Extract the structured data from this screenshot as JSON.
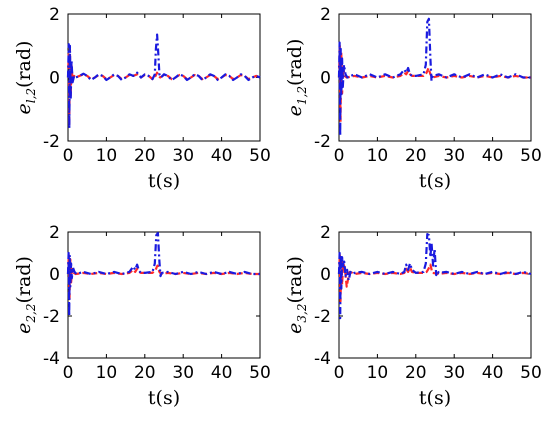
{
  "colors": {
    "series_a": "#ff2a2a",
    "series_b": "#1a1adf",
    "axis": "#000000",
    "background": "#ffffff"
  },
  "chart_data": [
    {
      "type": "line",
      "ylabel": {
        "symbol": "e",
        "subscript": "l,2",
        "unit": "(rad)"
      },
      "xlabel": "t(s)",
      "xlim": [
        0,
        50
      ],
      "ylim": [
        -2,
        2
      ],
      "xticks": [
        "0",
        "10",
        "20",
        "30",
        "40",
        "50"
      ],
      "yticks": [
        "-2",
        "0",
        "2"
      ],
      "series": [
        {
          "line_style": "dashed",
          "color": "#ff2a2a",
          "x": [
            0,
            0.2,
            0.35,
            0.5,
            0.7,
            0.9,
            1.2,
            1.6,
            2,
            3,
            4,
            5,
            6,
            7,
            8,
            9,
            10,
            11,
            12,
            13,
            14,
            15,
            16,
            17,
            18,
            19,
            20,
            21,
            22,
            22.8,
            23.2,
            23.6,
            24,
            25,
            26,
            27,
            28,
            29,
            30,
            31,
            32,
            33,
            34,
            35,
            36,
            37,
            38,
            39,
            40,
            41,
            42,
            43,
            44,
            45,
            46,
            47,
            48,
            49,
            50
          ],
          "y": [
            0,
            0.8,
            -1.5,
            0.9,
            -0.6,
            0.4,
            -0.1,
            0.05,
            0,
            0.05,
            0.1,
            0.05,
            -0.05,
            0,
            0.08,
            0.05,
            -0.05,
            0,
            0.08,
            0.05,
            -0.05,
            0,
            0.08,
            0.05,
            0.1,
            0,
            0.08,
            0.05,
            -0.05,
            0.05,
            0.15,
            0.05,
            0,
            0.08,
            0.05,
            -0.05,
            0,
            0.08,
            0.05,
            -0.05,
            0,
            0.08,
            0.05,
            -0.05,
            0,
            0.08,
            0.05,
            -0.05,
            0,
            0.08,
            0.05,
            -0.05,
            0,
            0.08,
            0.05,
            -0.05,
            0,
            0.05,
            0
          ]
        },
        {
          "line_style": "dash-dot",
          "color": "#1a1adf",
          "x": [
            0,
            0.2,
            0.35,
            0.5,
            0.7,
            0.9,
            1.2,
            1.6,
            2,
            3,
            4,
            5,
            6,
            7,
            8,
            9,
            10,
            11,
            12,
            13,
            14,
            15,
            16,
            17,
            18,
            19,
            20,
            21,
            22,
            22.6,
            22.9,
            23.2,
            23.5,
            23.8,
            24.2,
            25,
            26,
            27,
            28,
            29,
            30,
            31,
            32,
            33,
            34,
            35,
            36,
            37,
            38,
            39,
            40,
            41,
            42,
            43,
            44,
            45,
            46,
            47,
            48,
            49,
            50
          ],
          "y": [
            0,
            1.05,
            -1.6,
            1.0,
            -0.7,
            0.55,
            -0.15,
            0.05,
            0,
            0.05,
            0.12,
            0.05,
            -0.08,
            0,
            0.1,
            0.05,
            -0.08,
            0,
            0.1,
            0.05,
            -0.08,
            0,
            0.1,
            0.05,
            0.15,
            0,
            0.1,
            0.05,
            -0.05,
            0.1,
            0.9,
            1.35,
            0.8,
            0.1,
            0,
            0.1,
            0.05,
            -0.08,
            0,
            0.1,
            0.05,
            -0.08,
            0,
            0.1,
            0.05,
            -0.08,
            0,
            0.1,
            0.05,
            -0.08,
            0,
            0.1,
            0.05,
            -0.08,
            0,
            0.1,
            0.05,
            -0.08,
            0,
            0.05,
            0
          ]
        }
      ]
    },
    {
      "type": "line",
      "ylabel": {
        "symbol": "e",
        "subscript": "1,2",
        "unit": "(rad)"
      },
      "xlabel": "t(s)",
      "xlim": [
        0,
        50
      ],
      "ylim": [
        -2,
        2
      ],
      "xticks": [
        "0",
        "10",
        "20",
        "30",
        "40",
        "50"
      ],
      "yticks": [
        "-2",
        "0",
        "2"
      ],
      "series": [
        {
          "line_style": "dashed",
          "color": "#ff2a2a",
          "x": [
            0,
            0.2,
            0.4,
            0.6,
            0.8,
            1.1,
            1.5,
            2,
            4,
            6,
            8,
            10,
            12,
            14,
            16,
            17,
            17.5,
            18,
            18.5,
            19,
            20,
            22,
            22.8,
            23.3,
            23.8,
            24.3,
            26,
            28,
            30,
            32,
            34,
            36,
            38,
            40,
            42,
            44,
            46,
            48,
            50
          ],
          "y": [
            0,
            1.0,
            -1.4,
            0.8,
            -0.5,
            0.3,
            0.05,
            0,
            0.05,
            0,
            0.05,
            0,
            0.05,
            0,
            0.05,
            0.15,
            0.1,
            0.2,
            0.1,
            0.05,
            0.05,
            0.05,
            0.15,
            0.3,
            0.1,
            0,
            0.05,
            0,
            0.05,
            0,
            0.05,
            0,
            0.05,
            0,
            0.05,
            0,
            0.05,
            0,
            0
          ]
        },
        {
          "line_style": "dash-dot",
          "color": "#1a1adf",
          "x": [
            0,
            0.15,
            0.3,
            0.45,
            0.6,
            0.8,
            1.0,
            1.3,
            1.7,
            2.2,
            4,
            6,
            8,
            10,
            12,
            14,
            16,
            17,
            17.5,
            18,
            18.5,
            19,
            20,
            22,
            22.6,
            23,
            23.4,
            23.8,
            24.1,
            24.4,
            26,
            28,
            30,
            32,
            34,
            36,
            38,
            40,
            42,
            44,
            46,
            48,
            50
          ],
          "y": [
            0,
            1.1,
            -1.85,
            0.9,
            -0.6,
            0.6,
            -0.3,
            0.4,
            0.1,
            0,
            0.1,
            0,
            0.1,
            0,
            0.1,
            0,
            0.1,
            0.25,
            0.15,
            0.3,
            0.1,
            0.05,
            0.05,
            0.1,
            0.4,
            1.75,
            1.85,
            0.6,
            -0.1,
            0.05,
            0.1,
            0,
            0.1,
            0,
            0.1,
            0,
            0.1,
            0,
            0.1,
            0,
            0.1,
            0,
            0
          ]
        }
      ]
    },
    {
      "type": "line",
      "ylabel": {
        "symbol": "e",
        "subscript": "2,2",
        "unit": "(rad)"
      },
      "xlabel": "t(s)",
      "xlim": [
        0,
        50
      ],
      "ylim": [
        -4,
        2
      ],
      "xticks": [
        "0",
        "10",
        "20",
        "30",
        "40",
        "50"
      ],
      "yticks": [
        "-4",
        "-2",
        "0",
        "2"
      ],
      "series": [
        {
          "line_style": "dashed",
          "color": "#ff2a2a",
          "x": [
            0,
            0.2,
            0.4,
            0.6,
            0.8,
            1.1,
            1.5,
            2,
            4,
            6,
            8,
            10,
            12,
            14,
            16,
            17,
            17.5,
            18,
            18.5,
            19,
            20,
            22,
            22.8,
            23.3,
            23.8,
            24.3,
            26,
            28,
            30,
            32,
            34,
            36,
            38,
            40,
            42,
            44,
            46,
            48,
            50
          ],
          "y": [
            0,
            0.9,
            -1.2,
            0.7,
            -0.4,
            0.25,
            0.05,
            0,
            0.05,
            0,
            0.05,
            0,
            0.05,
            0,
            0.05,
            0.2,
            0.1,
            0.25,
            0.1,
            0.05,
            0.05,
            0.05,
            0.2,
            0.4,
            0.1,
            0,
            0.05,
            0,
            0.05,
            0,
            0.05,
            0,
            0.05,
            0,
            0.05,
            0,
            0.05,
            0,
            0
          ]
        },
        {
          "line_style": "dash-dot",
          "color": "#1a1adf",
          "x": [
            0,
            0.15,
            0.3,
            0.45,
            0.6,
            0.8,
            1.0,
            1.3,
            1.7,
            2.2,
            4,
            6,
            8,
            10,
            12,
            14,
            16,
            17,
            17.5,
            18,
            18.5,
            19,
            20,
            22,
            22.6,
            23,
            23.4,
            23.8,
            24.1,
            24.4,
            26,
            28,
            30,
            32,
            34,
            36,
            38,
            40,
            42,
            44,
            46,
            48,
            50
          ],
          "y": [
            0,
            1.0,
            -2.0,
            0.9,
            -0.6,
            0.5,
            -0.2,
            0.3,
            0.1,
            0,
            0.1,
            0,
            0.1,
            0,
            0.1,
            0,
            0.1,
            0.35,
            0.2,
            0.45,
            0.15,
            0.05,
            0.05,
            0.1,
            0.5,
            1.85,
            1.95,
            0.6,
            -0.1,
            0.05,
            0.1,
            0,
            0.1,
            0,
            0.1,
            0,
            0.1,
            0,
            0.1,
            0,
            0.1,
            0,
            0
          ]
        }
      ]
    },
    {
      "type": "line",
      "ylabel": {
        "symbol": "e",
        "subscript": "3,2",
        "unit": "(rad)"
      },
      "xlabel": "t(s)",
      "xlim": [
        0,
        50
      ],
      "ylim": [
        -4,
        2
      ],
      "xticks": [
        "0",
        "10",
        "20",
        "30",
        "40",
        "50"
      ],
      "yticks": [
        "-4",
        "-2",
        "0",
        "2"
      ],
      "series": [
        {
          "line_style": "dashed",
          "color": "#ff2a2a",
          "x": [
            0,
            0.2,
            0.4,
            0.6,
            0.8,
            1.1,
            1.5,
            2,
            2.4,
            2.8,
            3.5,
            4,
            6,
            8,
            10,
            12,
            14,
            16,
            17,
            17.5,
            18,
            18.5,
            19,
            20,
            22,
            22.8,
            23.3,
            23.8,
            24.3,
            26,
            28,
            30,
            32,
            34,
            36,
            38,
            40,
            42,
            44,
            46,
            48,
            50
          ],
          "y": [
            0,
            0.9,
            -1.3,
            0.7,
            -0.5,
            0.5,
            0.3,
            -0.6,
            -0.2,
            0.1,
            0.05,
            0,
            0.05,
            0,
            0.05,
            0,
            0.05,
            0,
            0.05,
            0.25,
            0.1,
            0.3,
            0.1,
            0.05,
            0.05,
            0.1,
            0.25,
            0.45,
            0.05,
            0,
            0.05,
            0,
            0.05,
            0,
            0.05,
            0,
            0.05,
            0,
            0.05,
            0,
            0.05,
            0
          ]
        },
        {
          "line_style": "dash-dot",
          "color": "#1a1adf",
          "x": [
            0,
            0.15,
            0.3,
            0.45,
            0.6,
            0.8,
            1.0,
            1.3,
            1.7,
            2.1,
            2.5,
            3,
            3.5,
            4,
            6,
            8,
            10,
            12,
            14,
            16,
            17,
            17.5,
            18,
            18.5,
            19,
            20,
            22,
            22.6,
            23,
            23.4,
            23.8,
            24.1,
            24.5,
            24.9,
            25.3,
            25.7,
            26,
            28,
            30,
            32,
            34,
            36,
            38,
            40,
            42,
            44,
            46,
            48,
            50
          ],
          "y": [
            0,
            1.0,
            -2.1,
            0.9,
            -0.7,
            0.8,
            0.3,
            0.7,
            -0.1,
            0.2,
            -0.3,
            0.1,
            0,
            0.05,
            0.1,
            0,
            0.1,
            0,
            0.1,
            0,
            0.1,
            0.45,
            0.2,
            0.5,
            0.2,
            0.05,
            0.1,
            0.5,
            1.9,
            1.85,
            0.8,
            1.5,
            0.4,
            1.2,
            -0.05,
            0.15,
            0.05,
            0.1,
            0,
            0.1,
            0,
            0.1,
            0,
            0.1,
            0,
            0.1,
            0,
            0.1,
            0
          ]
        }
      ]
    }
  ]
}
